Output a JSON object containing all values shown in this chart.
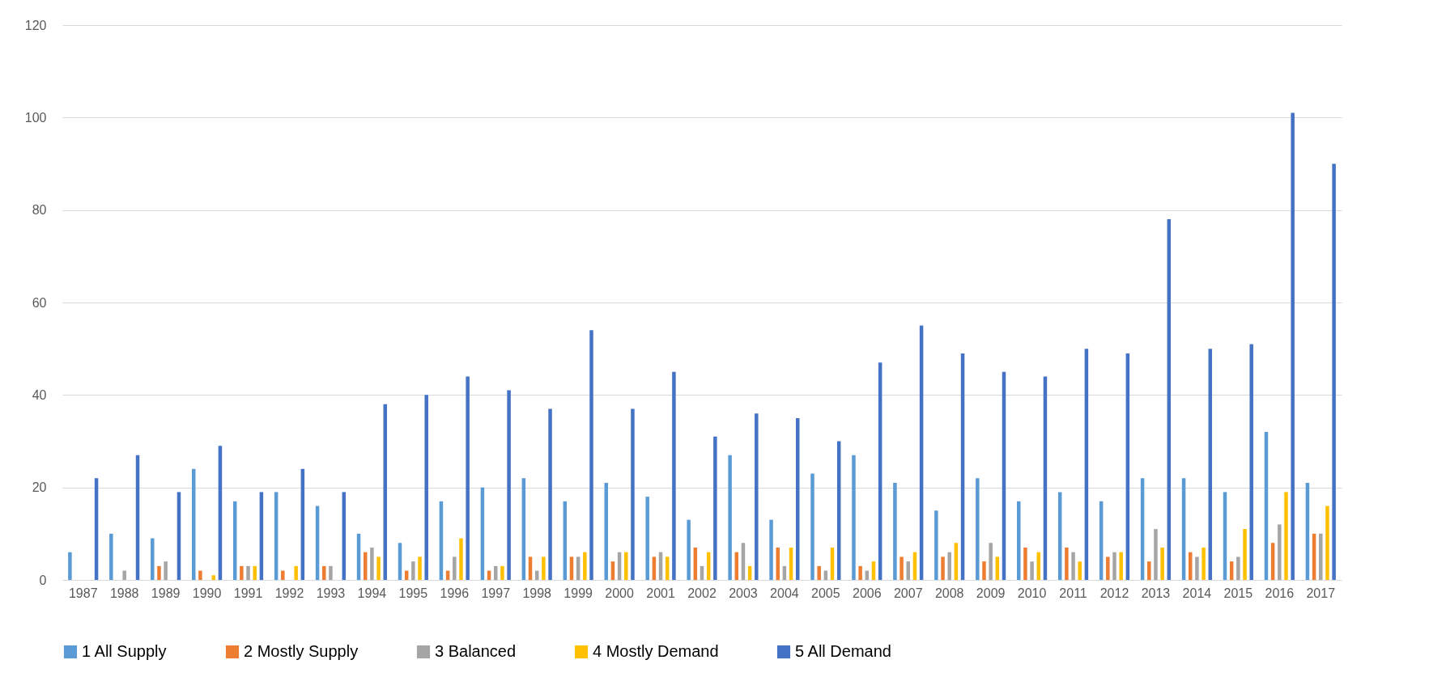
{
  "chart_data": {
    "type": "bar",
    "categories": [
      "1987",
      "1988",
      "1989",
      "1990",
      "1991",
      "1992",
      "1993",
      "1994",
      "1995",
      "1996",
      "1997",
      "1998",
      "1999",
      "2000",
      "2001",
      "2002",
      "2003",
      "2004",
      "2005",
      "2006",
      "2007",
      "2008",
      "2009",
      "2010",
      "2011",
      "2012",
      "2013",
      "2014",
      "2015",
      "2016",
      "2017"
    ],
    "series": [
      {
        "name": "1 All Supply",
        "color": "#5b9bd5",
        "values": [
          6,
          10,
          9,
          24,
          17,
          19,
          16,
          10,
          8,
          17,
          20,
          22,
          17,
          21,
          18,
          13,
          27,
          13,
          23,
          27,
          21,
          15,
          22,
          17,
          19,
          17,
          22,
          22,
          19,
          32,
          21
        ]
      },
      {
        "name": "2 Mostly Supply",
        "color": "#ed7d31",
        "values": [
          0,
          0,
          3,
          2,
          3,
          2,
          3,
          6,
          2,
          2,
          2,
          5,
          5,
          4,
          5,
          7,
          6,
          7,
          3,
          3,
          5,
          5,
          4,
          7,
          7,
          5,
          4,
          6,
          4,
          8,
          10
        ]
      },
      {
        "name": "3 Balanced",
        "color": "#a5a5a5",
        "values": [
          0,
          2,
          4,
          0,
          3,
          0,
          3,
          7,
          4,
          5,
          3,
          2,
          5,
          6,
          6,
          3,
          8,
          3,
          2,
          2,
          4,
          6,
          8,
          4,
          6,
          6,
          11,
          5,
          5,
          12,
          10
        ]
      },
      {
        "name": "4 Mostly Demand",
        "color": "#ffc000",
        "values": [
          0,
          0,
          0,
          1,
          3,
          3,
          0,
          5,
          5,
          9,
          3,
          5,
          6,
          6,
          5,
          6,
          3,
          7,
          7,
          4,
          6,
          8,
          5,
          6,
          4,
          6,
          7,
          7,
          11,
          19,
          16
        ]
      },
      {
        "name": "5 All Demand",
        "color": "#4472c4",
        "values": [
          22,
          27,
          19,
          29,
          19,
          24,
          19,
          38,
          40,
          44,
          41,
          37,
          54,
          37,
          45,
          31,
          36,
          35,
          30,
          47,
          55,
          49,
          45,
          44,
          50,
          49,
          78,
          50,
          51,
          101,
          90
        ]
      }
    ],
    "ylim": [
      0,
      120
    ],
    "yticks": [
      0,
      20,
      40,
      60,
      80,
      100,
      120
    ],
    "grid": "y",
    "legend": "bottom"
  }
}
